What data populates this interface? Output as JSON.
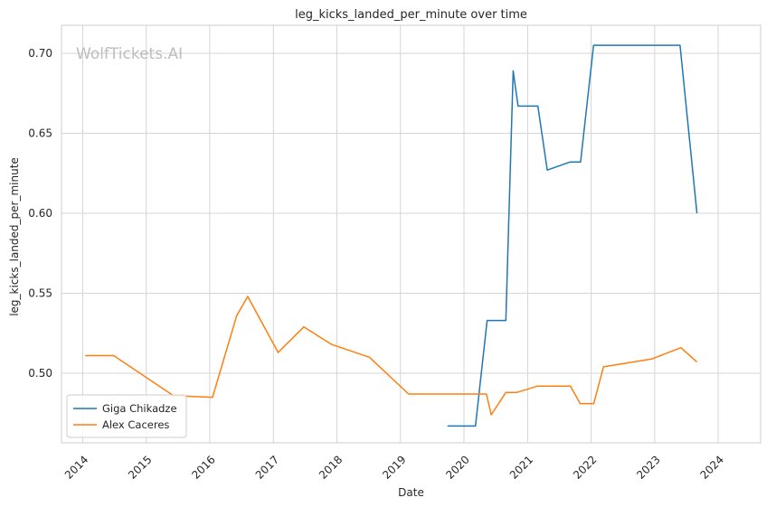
{
  "chart_data": {
    "type": "line",
    "title": "leg_kicks_landed_per_minute over time",
    "xlabel": "Date",
    "ylabel": "leg_kicks_landed_per_minute",
    "watermark": "WolfTickets.AI",
    "xlim": [
      "2013-09-01",
      "2024-09-01"
    ],
    "ylim": [
      0.4565,
      0.7175
    ],
    "x_ticks": [
      "2014",
      "2015",
      "2016",
      "2017",
      "2018",
      "2019",
      "2020",
      "2021",
      "2022",
      "2023",
      "2024"
    ],
    "y_ticks": [
      "0.50",
      "0.55",
      "0.60",
      "0.65",
      "0.70"
    ],
    "grid": true,
    "legend_position": "lower-left",
    "series": [
      {
        "name": "Giga Chikadze",
        "color": "#1f77b4",
        "points": [
          [
            "2019-09-28",
            0.467
          ],
          [
            "2020-03-07",
            0.467
          ],
          [
            "2020-05-13",
            0.533
          ],
          [
            "2020-08-29",
            0.533
          ],
          [
            "2020-10-10",
            0.689
          ],
          [
            "2020-11-07",
            0.667
          ],
          [
            "2021-03-01",
            0.667
          ],
          [
            "2021-04-24",
            0.627
          ],
          [
            "2021-09-01",
            0.632
          ],
          [
            "2021-11-01",
            0.632
          ],
          [
            "2022-01-15",
            0.705
          ],
          [
            "2023-05-27",
            0.705
          ],
          [
            "2023-09-01",
            0.6
          ]
        ]
      },
      {
        "name": "Alex Caceres",
        "color": "#ff7f0e",
        "points": [
          [
            "2014-01-15",
            0.511
          ],
          [
            "2014-06-28",
            0.511
          ],
          [
            "2015-06-06",
            0.486
          ],
          [
            "2016-01-17",
            0.485
          ],
          [
            "2016-06-04",
            0.536
          ],
          [
            "2016-08-06",
            0.548
          ],
          [
            "2017-01-28",
            0.513
          ],
          [
            "2017-06-25",
            0.529
          ],
          [
            "2017-12-01",
            0.518
          ],
          [
            "2018-07-07",
            0.51
          ],
          [
            "2019-02-17",
            0.487
          ],
          [
            "2020-05-09",
            0.487
          ],
          [
            "2020-06-06",
            0.474
          ],
          [
            "2020-08-29",
            0.488
          ],
          [
            "2020-11-01",
            0.488
          ],
          [
            "2021-02-27",
            0.492
          ],
          [
            "2021-09-04",
            0.492
          ],
          [
            "2021-10-30",
            0.481
          ],
          [
            "2022-01-16",
            0.481
          ],
          [
            "2022-03-13",
            0.504
          ],
          [
            "2022-12-17",
            0.509
          ],
          [
            "2023-06-01",
            0.516
          ],
          [
            "2023-09-01",
            0.507
          ]
        ]
      }
    ]
  }
}
